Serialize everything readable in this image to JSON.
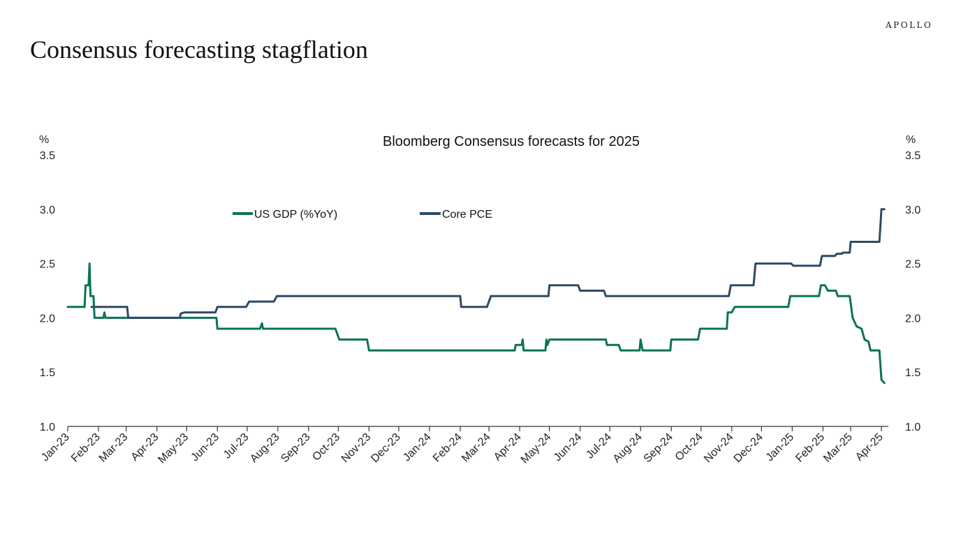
{
  "brand": "APOLLO",
  "page_title": "Consensus forecasting stagflation",
  "colors": {
    "gdp": "#0a7356",
    "pce": "#2c4a66",
    "axis": "#333333"
  },
  "chart_data": {
    "type": "line",
    "title": "Bloomberg Consensus forecasts for 2025",
    "ylabel_left": "%",
    "ylabel_right": "%",
    "ylim": [
      1.0,
      3.5
    ],
    "yticks": [
      "1.0",
      "1.5",
      "2.0",
      "2.5",
      "3.0",
      "3.5"
    ],
    "x_range": [
      "2023-01-01",
      "2025-04-08"
    ],
    "xtick_labels": [
      "Jan-23",
      "Feb-23",
      "Mar-23",
      "Apr-23",
      "May-23",
      "Jun-23",
      "Jul-23",
      "Aug-23",
      "Sep-23",
      "Oct-23",
      "Nov-23",
      "Dec-23",
      "Jan-24",
      "Feb-24",
      "Mar-24",
      "Apr-24",
      "May-24",
      "Jun-24",
      "Jul-24",
      "Aug-24",
      "Sep-24",
      "Oct-24",
      "Nov-24",
      "Dec-24",
      "Jan-25",
      "Feb-25",
      "Mar-25",
      "Apr-25"
    ],
    "xtick_dates": [
      "2023-01-01",
      "2023-02-01",
      "2023-03-01",
      "2023-04-01",
      "2023-05-01",
      "2023-06-01",
      "2023-07-01",
      "2023-08-01",
      "2023-09-01",
      "2023-10-01",
      "2023-11-01",
      "2023-12-01",
      "2024-01-01",
      "2024-02-01",
      "2024-03-01",
      "2024-04-01",
      "2024-05-01",
      "2024-06-01",
      "2024-07-01",
      "2024-08-01",
      "2024-09-01",
      "2024-10-01",
      "2024-11-01",
      "2024-12-01",
      "2025-01-01",
      "2025-02-01",
      "2025-03-01",
      "2025-04-01"
    ],
    "legend": "top-left, inside plot",
    "grid": false,
    "series": [
      {
        "name": "US GDP (%YoY)",
        "points": [
          [
            "2023-01-01",
            2.1
          ],
          [
            "2023-01-18",
            2.1
          ],
          [
            "2023-01-19",
            2.3
          ],
          [
            "2023-01-22",
            2.3
          ],
          [
            "2023-01-23",
            2.5
          ],
          [
            "2023-01-24",
            2.2
          ],
          [
            "2023-01-27",
            2.2
          ],
          [
            "2023-01-28",
            2.0
          ],
          [
            "2023-02-06",
            2.0
          ],
          [
            "2023-02-07",
            2.05
          ],
          [
            "2023-02-08",
            2.0
          ],
          [
            "2023-05-31",
            2.0
          ],
          [
            "2023-06-01",
            1.9
          ],
          [
            "2023-07-14",
            1.9
          ],
          [
            "2023-07-16",
            1.95
          ],
          [
            "2023-07-17",
            1.9
          ],
          [
            "2023-09-28",
            1.9
          ],
          [
            "2023-09-30",
            1.85
          ],
          [
            "2023-10-02",
            1.8
          ],
          [
            "2023-10-30",
            1.8
          ],
          [
            "2023-11-01",
            1.7
          ],
          [
            "2024-03-27",
            1.7
          ],
          [
            "2024-03-28",
            1.75
          ],
          [
            "2024-04-03",
            1.75
          ],
          [
            "2024-04-04",
            1.8
          ],
          [
            "2024-04-05",
            1.7
          ],
          [
            "2024-04-27",
            1.7
          ],
          [
            "2024-04-28",
            1.8
          ],
          [
            "2024-04-29",
            1.75
          ],
          [
            "2024-05-01",
            1.8
          ],
          [
            "2024-06-27",
            1.8
          ],
          [
            "2024-06-28",
            1.75
          ],
          [
            "2024-07-10",
            1.75
          ],
          [
            "2024-07-12",
            1.7
          ],
          [
            "2024-07-31",
            1.7
          ],
          [
            "2024-08-01",
            1.8
          ],
          [
            "2024-08-03",
            1.7
          ],
          [
            "2024-08-31",
            1.7
          ],
          [
            "2024-09-01",
            1.8
          ],
          [
            "2024-09-28",
            1.8
          ],
          [
            "2024-09-30",
            1.9
          ],
          [
            "2024-10-27",
            1.9
          ],
          [
            "2024-10-28",
            2.05
          ],
          [
            "2024-11-01",
            2.05
          ],
          [
            "2024-11-04",
            2.1
          ],
          [
            "2024-12-28",
            2.1
          ],
          [
            "2024-12-30",
            2.2
          ],
          [
            "2025-01-28",
            2.2
          ],
          [
            "2025-01-30",
            2.3
          ],
          [
            "2025-02-03",
            2.3
          ],
          [
            "2025-02-06",
            2.25
          ],
          [
            "2025-02-14",
            2.25
          ],
          [
            "2025-02-16",
            2.2
          ],
          [
            "2025-02-28",
            2.2
          ],
          [
            "2025-03-03",
            2.0
          ],
          [
            "2025-03-07",
            1.92
          ],
          [
            "2025-03-12",
            1.9
          ],
          [
            "2025-03-15",
            1.8
          ],
          [
            "2025-03-19",
            1.78
          ],
          [
            "2025-03-21",
            1.7
          ],
          [
            "2025-03-30",
            1.7
          ],
          [
            "2025-04-01",
            1.43
          ],
          [
            "2025-04-04",
            1.4
          ]
        ]
      },
      {
        "name": "Core PCE",
        "points": [
          [
            "2023-01-25",
            2.1
          ],
          [
            "2023-03-02",
            2.1
          ],
          [
            "2023-03-03",
            2.0
          ],
          [
            "2023-04-24",
            2.0
          ],
          [
            "2023-04-25",
            2.04
          ],
          [
            "2023-04-29",
            2.05
          ],
          [
            "2023-05-30",
            2.05
          ],
          [
            "2023-06-01",
            2.1
          ],
          [
            "2023-06-30",
            2.1
          ],
          [
            "2023-07-03",
            2.15
          ],
          [
            "2023-07-28",
            2.15
          ],
          [
            "2023-07-31",
            2.2
          ],
          [
            "2024-02-01",
            2.2
          ],
          [
            "2024-02-02",
            2.1
          ],
          [
            "2024-02-28",
            2.1
          ],
          [
            "2024-03-03",
            2.2
          ],
          [
            "2024-04-30",
            2.2
          ],
          [
            "2024-05-01",
            2.3
          ],
          [
            "2024-05-30",
            2.3
          ],
          [
            "2024-06-01",
            2.25
          ],
          [
            "2024-06-25",
            2.25
          ],
          [
            "2024-06-27",
            2.2
          ],
          [
            "2024-10-29",
            2.2
          ],
          [
            "2024-10-31",
            2.3
          ],
          [
            "2024-11-23",
            2.3
          ],
          [
            "2024-11-25",
            2.5
          ],
          [
            "2024-12-31",
            2.5
          ],
          [
            "2025-01-02",
            2.48
          ],
          [
            "2025-01-29",
            2.48
          ],
          [
            "2025-01-31",
            2.57
          ],
          [
            "2025-02-13",
            2.57
          ],
          [
            "2025-02-15",
            2.59
          ],
          [
            "2025-02-20",
            2.59
          ],
          [
            "2025-02-21",
            2.6
          ],
          [
            "2025-02-28",
            2.6
          ],
          [
            "2025-03-01",
            2.7
          ],
          [
            "2025-03-30",
            2.7
          ],
          [
            "2025-04-01",
            3.0
          ],
          [
            "2025-04-04",
            3.0
          ]
        ]
      }
    ]
  }
}
